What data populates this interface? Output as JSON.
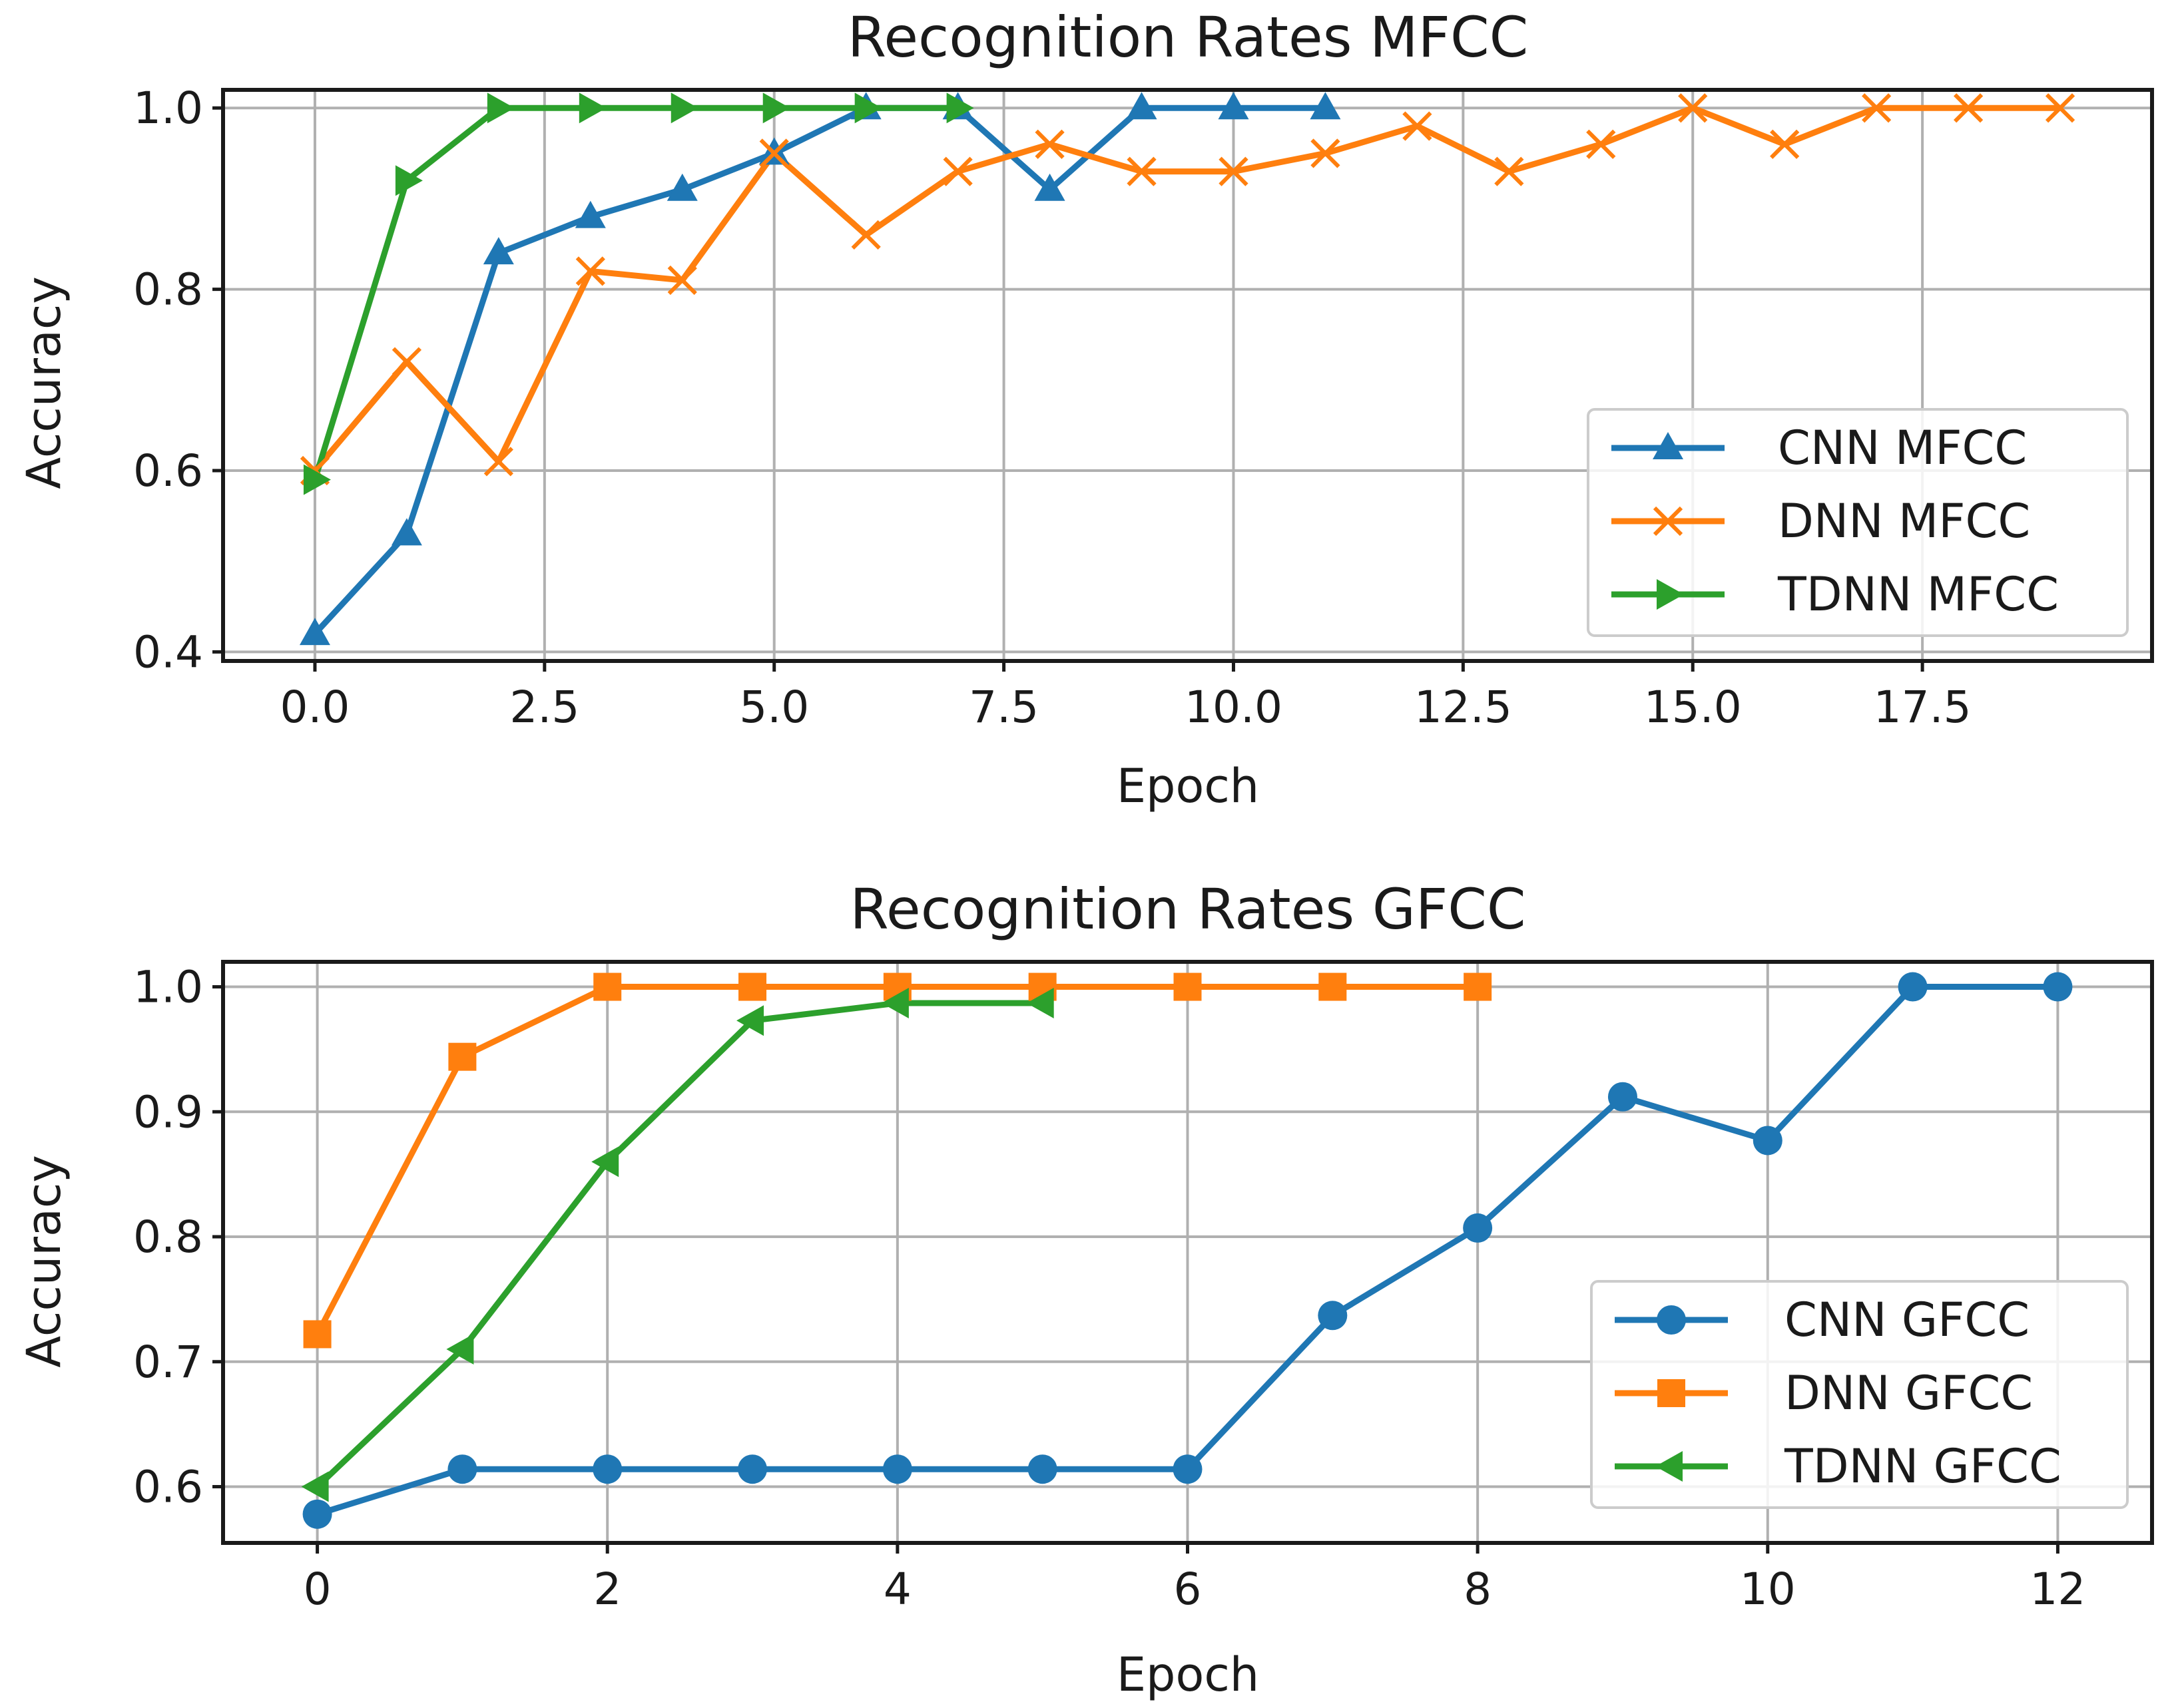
{
  "colors": {
    "cnn": "#1f77b4",
    "dnn": "#ff7f0e",
    "tdnn": "#2ca02c"
  },
  "chart_data": [
    {
      "type": "line",
      "title": "Recognition Rates MFCC",
      "xlabel": "Epoch",
      "ylabel": "Accuracy",
      "xlim": [
        -1.0,
        20.0
      ],
      "ylim": [
        0.39,
        1.02
      ],
      "xticks": [
        0.0,
        2.5,
        5.0,
        7.5,
        10.0,
        12.5,
        15.0,
        17.5
      ],
      "xtick_labels": [
        "0.0",
        "2.5",
        "5.0",
        "7.5",
        "10.0",
        "12.5",
        "15.0",
        "17.5"
      ],
      "yticks": [
        0.4,
        0.6,
        0.8,
        1.0
      ],
      "ytick_labels": [
        "0.4",
        "0.6",
        "0.8",
        "1.0"
      ],
      "grid": true,
      "legend_position": "lower-right",
      "series": [
        {
          "name": "CNN MFCC",
          "color": "#1f77b4",
          "marker": "triangle-up",
          "x": [
            0,
            1,
            2,
            3,
            4,
            5,
            6,
            7,
            8,
            9,
            10,
            11
          ],
          "y": [
            0.42,
            0.53,
            0.84,
            0.88,
            0.91,
            0.95,
            1.0,
            1.0,
            0.91,
            1.0,
            1.0,
            1.0
          ]
        },
        {
          "name": "DNN MFCC",
          "color": "#ff7f0e",
          "marker": "x",
          "x": [
            0,
            1,
            2,
            3,
            4,
            5,
            6,
            7,
            8,
            9,
            10,
            11,
            12,
            13,
            14,
            15,
            16,
            17,
            18,
            19
          ],
          "y": [
            0.6,
            0.72,
            0.61,
            0.82,
            0.81,
            0.95,
            0.86,
            0.93,
            0.96,
            0.93,
            0.93,
            0.95,
            0.98,
            0.93,
            0.96,
            1.0,
            0.96,
            1.0,
            1.0,
            1.0
          ]
        },
        {
          "name": "TDNN MFCC",
          "color": "#2ca02c",
          "marker": "triangle-right",
          "x": [
            0,
            1,
            2,
            3,
            4,
            5,
            6,
            7
          ],
          "y": [
            0.59,
            0.92,
            1.0,
            1.0,
            1.0,
            1.0,
            1.0,
            1.0
          ]
        }
      ]
    },
    {
      "type": "line",
      "title": "Recognition Rates GFCC",
      "xlabel": "Epoch",
      "ylabel": "Accuracy",
      "xlim": [
        -0.65,
        12.65
      ],
      "ylim": [
        0.555,
        1.02
      ],
      "xticks": [
        0,
        2,
        4,
        6,
        8,
        10,
        12
      ],
      "xtick_labels": [
        "0",
        "2",
        "4",
        "6",
        "8",
        "10",
        "12"
      ],
      "yticks": [
        0.6,
        0.7,
        0.8,
        0.9,
        1.0
      ],
      "ytick_labels": [
        "0.6",
        "0.7",
        "0.8",
        "0.9",
        "1.0"
      ],
      "grid": true,
      "legend_position": "lower-right",
      "series": [
        {
          "name": "CNN GFCC",
          "color": "#1f77b4",
          "marker": "circle",
          "x": [
            0,
            1,
            2,
            3,
            4,
            5,
            6,
            7,
            8,
            9,
            10,
            11,
            12
          ],
          "y": [
            0.578,
            0.614,
            0.614,
            0.614,
            0.614,
            0.614,
            0.614,
            0.737,
            0.807,
            0.912,
            0.877,
            1.0,
            1.0
          ]
        },
        {
          "name": "DNN GFCC",
          "color": "#ff7f0e",
          "marker": "square",
          "x": [
            0,
            1,
            2,
            3,
            4,
            5,
            6,
            7,
            8
          ],
          "y": [
            0.722,
            0.944,
            1.0,
            1.0,
            1.0,
            1.0,
            1.0,
            1.0,
            1.0
          ]
        },
        {
          "name": "TDNN GFCC",
          "color": "#2ca02c",
          "marker": "triangle-left",
          "x": [
            0,
            1,
            2,
            3,
            4,
            5
          ],
          "y": [
            0.6,
            0.71,
            0.86,
            0.973,
            0.987,
            0.987
          ]
        }
      ]
    }
  ]
}
